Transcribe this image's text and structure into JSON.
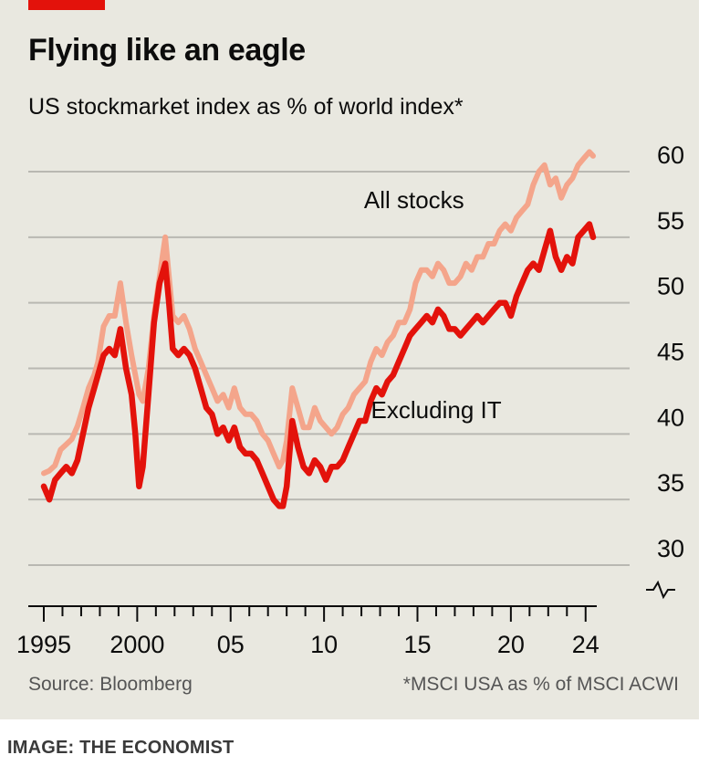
{
  "header": {
    "title": "Flying like an eagle",
    "subtitle": "US stockmarket index as % of world index*"
  },
  "footer": {
    "source": "Source: Bloomberg",
    "note": "*MSCI USA as % of MSCI ACWI",
    "credit": "IMAGE: THE ECONOMIST"
  },
  "colors": {
    "all_stocks": "#f4a58b",
    "excluding_it": "#e3120b",
    "brand": "#e3120b"
  },
  "chart_data": {
    "type": "line",
    "title": "Flying like an eagle",
    "subtitle": "US stockmarket index as % of world index*",
    "xlabel": "",
    "ylabel": "",
    "xlim": [
      1995,
      2024.5
    ],
    "ylim": [
      28,
      60
    ],
    "y_axis_broken": true,
    "y_ticks": [
      30,
      35,
      40,
      45,
      50,
      55,
      60
    ],
    "x_tick_labels": [
      {
        "x": 1995,
        "label": "1995"
      },
      {
        "x": 2000,
        "label": "2000"
      },
      {
        "x": 2005,
        "label": "05"
      },
      {
        "x": 2010,
        "label": "10"
      },
      {
        "x": 2015,
        "label": "15"
      },
      {
        "x": 2020,
        "label": "20"
      },
      {
        "x": 2024,
        "label": "24"
      }
    ],
    "annotations": [
      {
        "text": "All stocks",
        "series": "All stocks",
        "x": 2017.5,
        "y": 57.2
      },
      {
        "text": "Excluding IT",
        "series": "Excluding IT",
        "x": 2019.5,
        "y": 41.2
      }
    ],
    "series": [
      {
        "name": "All stocks",
        "color": "#f4a58b",
        "x": [
          1995.0,
          1995.3,
          1995.6,
          1995.9,
          1996.2,
          1996.5,
          1996.8,
          1997.1,
          1997.4,
          1997.7,
          1997.9,
          1998.2,
          1998.5,
          1998.8,
          1999.1,
          1999.4,
          1999.7,
          1999.9,
          2000.1,
          2000.3,
          2000.6,
          2000.9,
          2001.2,
          2001.5,
          2001.7,
          2001.9,
          2002.2,
          2002.5,
          2002.8,
          2003.1,
          2003.4,
          2003.7,
          2004.0,
          2004.3,
          2004.6,
          2004.9,
          2005.2,
          2005.5,
          2005.8,
          2006.1,
          2006.4,
          2006.7,
          2007.0,
          2007.3,
          2007.6,
          2007.8,
          2008.0,
          2008.3,
          2008.6,
          2008.9,
          2009.2,
          2009.5,
          2009.8,
          2010.1,
          2010.4,
          2010.7,
          2011.0,
          2011.3,
          2011.6,
          2011.9,
          2012.2,
          2012.5,
          2012.8,
          2013.1,
          2013.4,
          2013.7,
          2014.0,
          2014.3,
          2014.6,
          2014.9,
          2015.2,
          2015.5,
          2015.8,
          2016.1,
          2016.4,
          2016.7,
          2017.0,
          2017.3,
          2017.6,
          2017.9,
          2018.2,
          2018.5,
          2018.8,
          2019.1,
          2019.4,
          2019.7,
          2020.0,
          2020.3,
          2020.6,
          2020.9,
          2021.2,
          2021.5,
          2021.8,
          2022.1,
          2022.4,
          2022.7,
          2023.0,
          2023.3,
          2023.6,
          2023.9,
          2024.2,
          2024.4
        ],
        "values": [
          37.0,
          37.2,
          37.6,
          38.8,
          39.2,
          39.6,
          40.6,
          42.0,
          43.5,
          44.5,
          45.5,
          48.2,
          49.0,
          49.0,
          51.5,
          48.5,
          46.0,
          44.5,
          43.0,
          42.5,
          45.0,
          49.0,
          52.0,
          55.0,
          52.0,
          49.0,
          48.5,
          49.0,
          48.0,
          46.5,
          45.5,
          44.5,
          43.5,
          42.5,
          43.0,
          42.0,
          43.5,
          42.0,
          41.5,
          41.5,
          41.0,
          40.0,
          39.5,
          38.5,
          37.5,
          38.0,
          39.5,
          43.5,
          42.0,
          40.5,
          40.5,
          42.0,
          41.0,
          40.5,
          40.0,
          40.5,
          41.5,
          42.0,
          43.0,
          43.5,
          44.0,
          45.5,
          46.5,
          46.0,
          47.0,
          47.5,
          48.5,
          48.5,
          49.5,
          51.5,
          52.5,
          52.5,
          52.0,
          53.0,
          52.5,
          51.5,
          51.5,
          52.0,
          53.0,
          52.5,
          53.5,
          53.5,
          54.5,
          54.5,
          55.5,
          56.0,
          55.5,
          56.5,
          57.0,
          57.5,
          59.0,
          60.0,
          60.5,
          59.0,
          59.5,
          58.0,
          59.0,
          59.5,
          60.5,
          61.0,
          61.5,
          61.2
        ]
      },
      {
        "name": "Excluding IT",
        "color": "#e3120b",
        "x": [
          1995.0,
          1995.3,
          1995.6,
          1995.9,
          1996.2,
          1996.5,
          1996.8,
          1997.1,
          1997.4,
          1997.7,
          1997.9,
          1998.2,
          1998.5,
          1998.8,
          1999.1,
          1999.4,
          1999.7,
          1999.9,
          2000.1,
          2000.3,
          2000.6,
          2000.9,
          2001.2,
          2001.5,
          2001.7,
          2001.9,
          2002.2,
          2002.5,
          2002.8,
          2003.1,
          2003.4,
          2003.7,
          2004.0,
          2004.3,
          2004.6,
          2004.9,
          2005.2,
          2005.5,
          2005.8,
          2006.1,
          2006.4,
          2006.7,
          2007.0,
          2007.3,
          2007.6,
          2007.8,
          2008.0,
          2008.3,
          2008.6,
          2008.9,
          2009.2,
          2009.5,
          2009.8,
          2010.1,
          2010.4,
          2010.7,
          2011.0,
          2011.3,
          2011.6,
          2011.9,
          2012.2,
          2012.5,
          2012.8,
          2013.1,
          2013.4,
          2013.7,
          2014.0,
          2014.3,
          2014.6,
          2014.9,
          2015.2,
          2015.5,
          2015.8,
          2016.1,
          2016.4,
          2016.7,
          2017.0,
          2017.3,
          2017.6,
          2017.9,
          2018.2,
          2018.5,
          2018.8,
          2019.1,
          2019.4,
          2019.7,
          2020.0,
          2020.3,
          2020.6,
          2020.9,
          2021.2,
          2021.5,
          2021.8,
          2022.1,
          2022.4,
          2022.7,
          2023.0,
          2023.3,
          2023.6,
          2023.9,
          2024.2,
          2024.4
        ],
        "values": [
          36.0,
          35.0,
          36.5,
          37.0,
          37.5,
          37.0,
          38.0,
          40.0,
          42.0,
          43.5,
          44.5,
          46.0,
          46.5,
          46.0,
          48.0,
          45.0,
          43.0,
          40.0,
          36.0,
          37.5,
          43.0,
          48.5,
          51.5,
          53.0,
          50.0,
          46.5,
          46.0,
          46.5,
          46.0,
          45.0,
          43.5,
          42.0,
          41.5,
          40.0,
          40.5,
          39.5,
          40.5,
          39.0,
          38.5,
          38.5,
          38.0,
          37.0,
          36.0,
          35.0,
          34.5,
          34.5,
          36.0,
          41.0,
          39.0,
          37.5,
          37.0,
          38.0,
          37.5,
          36.5,
          37.5,
          37.5,
          38.0,
          39.0,
          40.0,
          41.0,
          41.0,
          42.5,
          43.5,
          43.0,
          44.0,
          44.5,
          45.5,
          46.5,
          47.5,
          48.0,
          48.5,
          49.0,
          48.5,
          49.5,
          49.0,
          48.0,
          48.0,
          47.5,
          48.0,
          48.5,
          49.0,
          48.5,
          49.0,
          49.5,
          50.0,
          50.0,
          49.0,
          50.5,
          51.5,
          52.5,
          53.0,
          52.5,
          54.0,
          55.5,
          53.5,
          52.5,
          53.5,
          53.0,
          55.0,
          55.5,
          56.0,
          55.0
        ]
      }
    ]
  }
}
